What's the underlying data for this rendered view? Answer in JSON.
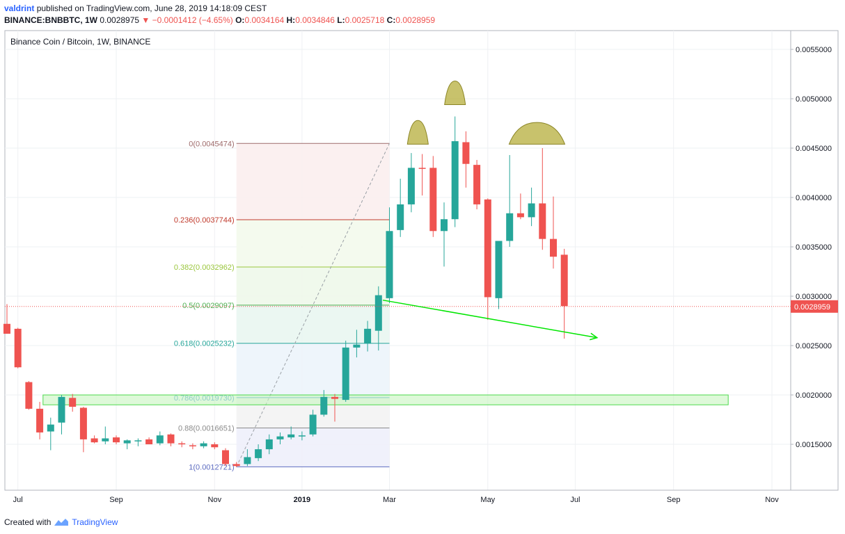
{
  "header": {
    "user": "valdrint",
    "published_text": "published on TradingView.com, June 28, 2019 14:18:09 CEST",
    "symbol": "BINANCE:BNBBTC, 1W",
    "last": "0.0028975",
    "change": "−0.0001412 (−4.65%)",
    "o_label": "O:",
    "o": "0.0034164",
    "h_label": "H:",
    "h": "0.0034846",
    "l_label": "L:",
    "l": "0.0025718",
    "c_label": "C:",
    "c": "0.0028959"
  },
  "footer": {
    "created_with": "Created with",
    "brand": "TradingView"
  },
  "colors": {
    "up": "#26a69a",
    "down": "#ef5350",
    "green_line": "#00e600",
    "price_label": "#ef5350",
    "zone": "#c8f5c0",
    "hump": "#b5ad3b"
  },
  "chart_data": {
    "type": "candlestick",
    "title": "Binance Coin / Bitcoin, 1W, BINANCE",
    "xlabel": "",
    "ylabel": "",
    "ylim": [
      0.001,
      0.0057
    ],
    "grid": true,
    "y_ticks": [
      0.0015,
      0.002,
      0.0025,
      0.003,
      0.0035,
      0.004,
      0.0045,
      0.005,
      0.0055
    ],
    "y_tick_labels": [
      "0.0015000",
      "0.0020000",
      "0.0025000",
      "0.0030000",
      "0.0035000",
      "0.0040000",
      "0.0045000",
      "0.0050000",
      "0.0055000"
    ],
    "x_tick_labels": [
      "Jul",
      "Sep",
      "Nov",
      "2019",
      "Mar",
      "May",
      "Jul",
      "Sep",
      "Nov"
    ],
    "x_tick_weeks": [
      1,
      10,
      19,
      27,
      35,
      44,
      52,
      61,
      70
    ],
    "current_price": 0.0028959,
    "current_price_label": "0.0028959",
    "candles": [
      {
        "w": 0,
        "o": 0.00272,
        "h": 0.00292,
        "l": 0.00262,
        "c": 0.00262
      },
      {
        "w": 1,
        "o": 0.00267,
        "h": 0.00268,
        "l": 0.00227,
        "c": 0.00228
      },
      {
        "w": 2,
        "o": 0.00213,
        "h": 0.00214,
        "l": 0.00185,
        "c": 0.00186
      },
      {
        "w": 3,
        "o": 0.00186,
        "h": 0.00193,
        "l": 0.00155,
        "c": 0.00162
      },
      {
        "w": 4,
        "o": 0.00163,
        "h": 0.00177,
        "l": 0.00144,
        "c": 0.0017
      },
      {
        "w": 5,
        "o": 0.00172,
        "h": 0.002,
        "l": 0.0016,
        "c": 0.00198
      },
      {
        "w": 6,
        "o": 0.00197,
        "h": 0.00201,
        "l": 0.00183,
        "c": 0.00188
      },
      {
        "w": 7,
        "o": 0.00187,
        "h": 0.00188,
        "l": 0.00142,
        "c": 0.00155
      },
      {
        "w": 8,
        "o": 0.00156,
        "h": 0.00159,
        "l": 0.00151,
        "c": 0.00152
      },
      {
        "w": 9,
        "o": 0.00153,
        "h": 0.00168,
        "l": 0.0015,
        "c": 0.00156
      },
      {
        "w": 10,
        "o": 0.00157,
        "h": 0.00159,
        "l": 0.0015,
        "c": 0.00152
      },
      {
        "w": 11,
        "o": 0.00151,
        "h": 0.00155,
        "l": 0.00145,
        "c": 0.00154
      },
      {
        "w": 12,
        "o": 0.00153,
        "h": 0.00156,
        "l": 0.00148,
        "c": 0.00154
      },
      {
        "w": 13,
        "o": 0.00155,
        "h": 0.00157,
        "l": 0.0015,
        "c": 0.0015
      },
      {
        "w": 14,
        "o": 0.00151,
        "h": 0.00163,
        "l": 0.00149,
        "c": 0.00159
      },
      {
        "w": 15,
        "o": 0.0016,
        "h": 0.00161,
        "l": 0.00148,
        "c": 0.00151
      },
      {
        "w": 16,
        "o": 0.00151,
        "h": 0.00153,
        "l": 0.00147,
        "c": 0.0015
      },
      {
        "w": 17,
        "o": 0.00149,
        "h": 0.00151,
        "l": 0.00145,
        "c": 0.00148
      },
      {
        "w": 18,
        "o": 0.00148,
        "h": 0.00153,
        "l": 0.00146,
        "c": 0.00151
      },
      {
        "w": 19,
        "o": 0.0015,
        "h": 0.00152,
        "l": 0.00145,
        "c": 0.00147
      },
      {
        "w": 20,
        "o": 0.00144,
        "h": 0.00146,
        "l": 0.00128,
        "c": 0.0013
      },
      {
        "w": 21,
        "o": 0.0013,
        "h": 0.00132,
        "l": 0.00127,
        "c": 0.00128
      },
      {
        "w": 22,
        "o": 0.0013,
        "h": 0.00145,
        "l": 0.00128,
        "c": 0.00137
      },
      {
        "w": 23,
        "o": 0.00136,
        "h": 0.0015,
        "l": 0.00133,
        "c": 0.00145
      },
      {
        "w": 24,
        "o": 0.00145,
        "h": 0.0016,
        "l": 0.0014,
        "c": 0.00155
      },
      {
        "w": 25,
        "o": 0.00155,
        "h": 0.00162,
        "l": 0.0015,
        "c": 0.00158
      },
      {
        "w": 26,
        "o": 0.00157,
        "h": 0.00168,
        "l": 0.00155,
        "c": 0.0016
      },
      {
        "w": 27,
        "o": 0.00158,
        "h": 0.00163,
        "l": 0.00154,
        "c": 0.00159
      },
      {
        "w": 28,
        "o": 0.0016,
        "h": 0.00185,
        "l": 0.00158,
        "c": 0.0018
      },
      {
        "w": 29,
        "o": 0.0018,
        "h": 0.00205,
        "l": 0.00178,
        "c": 0.00198
      },
      {
        "w": 30,
        "o": 0.00198,
        "h": 0.00201,
        "l": 0.00173,
        "c": 0.00196
      },
      {
        "w": 31,
        "o": 0.00195,
        "h": 0.00255,
        "l": 0.00193,
        "c": 0.00248
      },
      {
        "w": 32,
        "o": 0.00248,
        "h": 0.00266,
        "l": 0.00238,
        "c": 0.00251
      },
      {
        "w": 33,
        "o": 0.00252,
        "h": 0.00275,
        "l": 0.00244,
        "c": 0.00267
      },
      {
        "w": 34,
        "o": 0.00265,
        "h": 0.0031,
        "l": 0.00245,
        "c": 0.00301
      },
      {
        "w": 35,
        "o": 0.00298,
        "h": 0.0039,
        "l": 0.00293,
        "c": 0.00366
      },
      {
        "w": 36,
        "o": 0.00367,
        "h": 0.00419,
        "l": 0.0036,
        "c": 0.00393
      },
      {
        "w": 37,
        "o": 0.00393,
        "h": 0.00445,
        "l": 0.00385,
        "c": 0.0043
      },
      {
        "w": 38,
        "o": 0.0043,
        "h": 0.00444,
        "l": 0.00402,
        "c": 0.00429
      },
      {
        "w": 39,
        "o": 0.0043,
        "h": 0.00442,
        "l": 0.0036,
        "c": 0.00366
      },
      {
        "w": 40,
        "o": 0.00366,
        "h": 0.00395,
        "l": 0.0033,
        "c": 0.00378
      },
      {
        "w": 41,
        "o": 0.00378,
        "h": 0.00482,
        "l": 0.0037,
        "c": 0.00457
      },
      {
        "w": 42,
        "o": 0.00456,
        "h": 0.00467,
        "l": 0.0041,
        "c": 0.00434
      },
      {
        "w": 43,
        "o": 0.00433,
        "h": 0.00438,
        "l": 0.00388,
        "c": 0.00393
      },
      {
        "w": 44,
        "o": 0.00398,
        "h": 0.00399,
        "l": 0.00276,
        "c": 0.00299
      },
      {
        "w": 45,
        "o": 0.00298,
        "h": 0.00352,
        "l": 0.00287,
        "c": 0.00356
      },
      {
        "w": 46,
        "o": 0.00356,
        "h": 0.00443,
        "l": 0.0035,
        "c": 0.00384
      },
      {
        "w": 47,
        "o": 0.00384,
        "h": 0.00404,
        "l": 0.00378,
        "c": 0.0038
      },
      {
        "w": 48,
        "o": 0.0038,
        "h": 0.0041,
        "l": 0.00371,
        "c": 0.00394
      },
      {
        "w": 49,
        "o": 0.00394,
        "h": 0.0045,
        "l": 0.00347,
        "c": 0.00358
      },
      {
        "w": 50,
        "o": 0.00358,
        "h": 0.00401,
        "l": 0.00328,
        "c": 0.0034
      },
      {
        "w": 51,
        "o": 0.00342,
        "h": 0.00348,
        "l": 0.00257,
        "c": 0.0029
      }
    ],
    "fibonacci": {
      "levels": [
        {
          "ratio": "0",
          "value": 0.0045474,
          "label": "0(0.0045474)",
          "color": "#9e6b6b"
        },
        {
          "ratio": "0.236",
          "value": 0.0037744,
          "label": "0.236(0.0037744)",
          "color": "#c0392b"
        },
        {
          "ratio": "0.382",
          "value": 0.0032962,
          "label": "0.382(0.0032962)",
          "color": "#9ac63c"
        },
        {
          "ratio": "0.5",
          "value": 0.0029097,
          "label": "0.5(0.0029097)",
          "color": "#4caf50"
        },
        {
          "ratio": "0.618",
          "value": 0.0025232,
          "label": "0.618(0.0025232)",
          "color": "#26a69a"
        },
        {
          "ratio": "0.786",
          "value": 0.001973,
          "label": "0.786(0.0019730)",
          "color": "#3b8fd6"
        },
        {
          "ratio": "0.88",
          "value": 0.0016651,
          "label": "0.88(0.0016651)",
          "color": "#8a8a8a"
        },
        {
          "ratio": "1",
          "value": 0.0012721,
          "label": "1(0.0012721)",
          "color": "#5c6bc0"
        }
      ],
      "start_week": 21,
      "end_week": 35
    },
    "support_zone": {
      "from": 0.0019,
      "to": 0.002,
      "start_week": 3.3,
      "end_week": 66
    },
    "trend_arrow": {
      "start_week": 34.4,
      "start_value": 0.00296,
      "end_week": 54,
      "end_value": 0.00258
    },
    "humps": [
      {
        "week": 37.6,
        "value": 0.00454,
        "height": 0.00024
      },
      {
        "week": 41,
        "value": 0.00494,
        "height": 0.00024
      },
      {
        "week": 48.5,
        "value": 0.00454,
        "height": 0.00022
      }
    ]
  }
}
